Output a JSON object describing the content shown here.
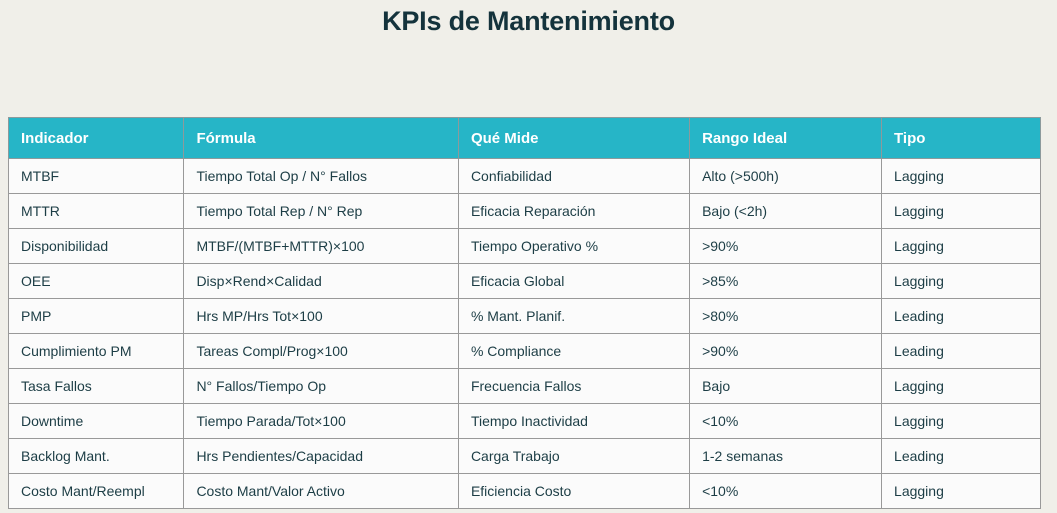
{
  "page": {
    "title": "KPIs de Mantenimiento"
  },
  "colors": {
    "page_background": "#f0efe9",
    "title_text": "#14333c",
    "header_background": "#26b5c7",
    "header_text": "#ffffff",
    "cell_background": "#fbfbfb",
    "cell_text": "#1c3d45",
    "border": "#999999"
  },
  "table": {
    "columns": [
      "Indicador",
      "Fórmula",
      "Qué Mide",
      "Rango Ideal",
      "Tipo"
    ],
    "column_keys": [
      "indicador",
      "formula",
      "que-mide",
      "rango-ideal",
      "tipo"
    ],
    "rows": [
      [
        "MTBF",
        "Tiempo Total Op / N° Fallos",
        "Confiabilidad",
        "Alto (>500h)",
        "Lagging"
      ],
      [
        "MTTR",
        "Tiempo Total Rep / N° Rep",
        "Eficacia Reparación",
        "Bajo (<2h)",
        "Lagging"
      ],
      [
        "Disponibilidad",
        "MTBF/(MTBF+MTTR)×100",
        "Tiempo Operativo %",
        ">90%",
        "Lagging"
      ],
      [
        "OEE",
        "Disp×Rend×Calidad",
        "Eficacia Global",
        ">85%",
        "Lagging"
      ],
      [
        "PMP",
        "Hrs MP/Hrs Tot×100",
        "% Mant. Planif.",
        ">80%",
        "Leading"
      ],
      [
        "Cumplimiento PM",
        "Tareas Compl/Prog×100",
        "% Compliance",
        ">90%",
        "Leading"
      ],
      [
        "Tasa Fallos",
        "N° Fallos/Tiempo Op",
        "Frecuencia Fallos",
        "Bajo",
        "Lagging"
      ],
      [
        "Downtime",
        "Tiempo Parada/Tot×100",
        "Tiempo Inactividad",
        "<10%",
        "Lagging"
      ],
      [
        "Backlog Mant.",
        "Hrs Pendientes/Capacidad",
        "Carga Trabajo",
        "1-2 semanas",
        "Leading"
      ],
      [
        "Costo Mant/Reempl",
        "Costo Mant/Valor Activo",
        "Eficiencia Costo",
        "<10%",
        "Lagging"
      ]
    ]
  }
}
